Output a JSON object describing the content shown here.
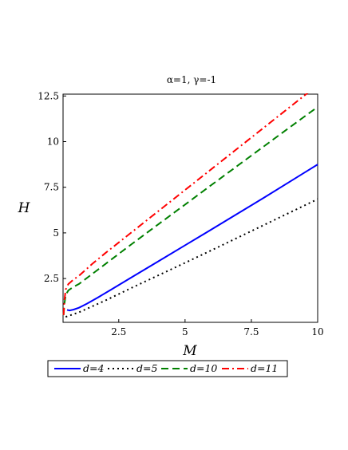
{
  "chart_data": {
    "type": "line",
    "title": "α=1, γ=-1",
    "xlabel": "M",
    "ylabel": "H",
    "xlim": [
      0.4,
      10
    ],
    "ylim": [
      0.1,
      12.6
    ],
    "xticks": [
      2.5,
      5,
      7.5,
      10
    ],
    "xtick_labels": [
      "2.5",
      "5",
      "7.5",
      "10"
    ],
    "yticks": [
      2.5,
      5,
      7.5,
      10,
      12.5
    ],
    "ytick_labels": [
      "2.5",
      "5",
      "7.5",
      "10",
      "12.5"
    ],
    "grid": false,
    "legend_position": "bottom",
    "series": [
      {
        "name": "d=4",
        "color": "#0000ff",
        "style": "solid",
        "x": [
          0.55,
          0.65,
          0.8,
          1.0,
          1.3,
          1.7,
          2.2,
          3.0,
          4.0,
          5.0,
          6.0,
          7.0,
          8.0,
          9.0,
          10.0
        ],
        "y": [
          0.78,
          0.75,
          0.8,
          0.9,
          1.12,
          1.45,
          1.88,
          2.58,
          3.45,
          4.32,
          5.19,
          6.07,
          6.95,
          7.85,
          8.75
        ]
      },
      {
        "name": "d=5",
        "color": "#000000",
        "style": "dotted",
        "x": [
          0.5,
          1.0,
          2.0,
          3.0,
          4.0,
          5.0,
          6.0,
          7.0,
          8.0,
          9.0,
          10.0
        ],
        "y": [
          0.4,
          0.65,
          1.3,
          2.0,
          2.68,
          3.36,
          4.05,
          4.75,
          5.45,
          6.15,
          6.85
        ]
      },
      {
        "name": "d=10",
        "color": "#008000",
        "style": "dashed",
        "x": [
          0.42,
          0.45,
          0.5,
          0.6,
          0.8,
          1.0,
          1.5,
          2.0,
          3.0,
          4.0,
          5.0,
          6.0,
          7.0,
          8.0,
          9.0,
          10.0
        ],
        "y": [
          0.5,
          1.1,
          1.6,
          1.85,
          2.05,
          2.2,
          2.75,
          3.3,
          4.4,
          5.48,
          6.55,
          7.63,
          8.7,
          9.77,
          10.84,
          11.9
        ]
      },
      {
        "name": "d=11",
        "color": "#ff0000",
        "style": "dashdot",
        "x": [
          0.42,
          0.45,
          0.5,
          0.6,
          0.8,
          1.0,
          1.5,
          2.0,
          3.0,
          4.0,
          5.0,
          6.0,
          7.0,
          8.0,
          9.0,
          10.0
        ],
        "y": [
          0.5,
          1.3,
          1.9,
          2.2,
          2.45,
          2.65,
          3.3,
          3.9,
          5.05,
          6.2,
          7.35,
          8.5,
          9.65,
          10.8,
          11.95,
          13.1
        ]
      }
    ]
  }
}
